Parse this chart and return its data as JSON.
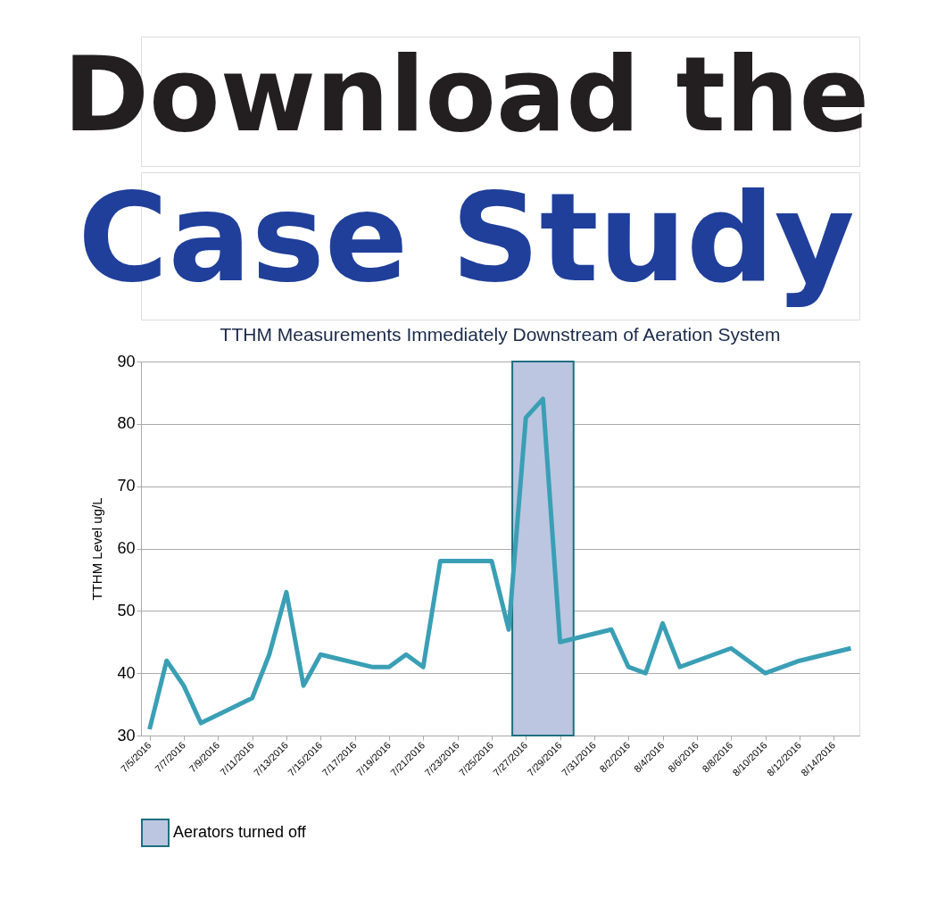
{
  "chart_data": {
    "type": "line",
    "title": "TTHM Measurements Immediately Downstream of Aeration System",
    "ylabel": "TTHM Level ug/L",
    "annotations": [
      "Download the",
      "Case Study"
    ],
    "x": [
      "2016-07-05",
      "2016-07-06",
      "2016-07-07",
      "2016-07-08",
      "2016-07-11",
      "2016-07-12",
      "2016-07-13",
      "2016-07-14",
      "2016-07-15",
      "2016-07-18",
      "2016-07-19",
      "2016-07-20",
      "2016-07-21",
      "2016-07-22",
      "2016-07-25",
      "2016-07-26",
      "2016-07-27",
      "2016-07-28",
      "2016-07-29",
      "2016-08-01",
      "2016-08-02",
      "2016-08-03",
      "2016-08-04",
      "2016-08-05",
      "2016-08-08",
      "2016-08-10",
      "2016-08-12",
      "2016-08-15"
    ],
    "series": [
      {
        "color": "#3a9fb5",
        "values": [
          31,
          42,
          38,
          32,
          36,
          43,
          53,
          38,
          43,
          41,
          41,
          43,
          41,
          58,
          58,
          47,
          81,
          84,
          45,
          47,
          41,
          40,
          48,
          41,
          44,
          40,
          42,
          44
        ]
      }
    ],
    "xlim": [
      "2016-07-04T12:00",
      "2016-08-15T12:00"
    ],
    "xticks": [
      {
        "value": "2016-07-05",
        "label": "7/5/2016"
      },
      {
        "value": "2016-07-07",
        "label": "7/7/2016"
      },
      {
        "value": "2016-07-09",
        "label": "7/9/2016"
      },
      {
        "value": "2016-07-11",
        "label": "7/11/2016"
      },
      {
        "value": "2016-07-13",
        "label": "7/13/2016"
      },
      {
        "value": "2016-07-15",
        "label": "7/15/2016"
      },
      {
        "value": "2016-07-17",
        "label": "7/17/2016"
      },
      {
        "value": "2016-07-19",
        "label": "7/19/2016"
      },
      {
        "value": "2016-07-21",
        "label": "7/21/2016"
      },
      {
        "value": "2016-07-23",
        "label": "7/23/2016"
      },
      {
        "value": "2016-07-25",
        "label": "7/25/2016"
      },
      {
        "value": "2016-07-27",
        "label": "7/27/2016"
      },
      {
        "value": "2016-07-29",
        "label": "7/29/2016"
      },
      {
        "value": "2016-07-31",
        "label": "7/31/2016"
      },
      {
        "value": "2016-08-02",
        "label": "8/2/2016"
      },
      {
        "value": "2016-08-04",
        "label": "8/4/2016"
      },
      {
        "value": "2016-08-06",
        "label": "8/6/2016"
      },
      {
        "value": "2016-08-08",
        "label": "8/8/2016"
      },
      {
        "value": "2016-08-10",
        "label": "8/10/2016"
      },
      {
        "value": "2016-08-12",
        "label": "8/12/2016"
      },
      {
        "value": "2016-08-14",
        "label": "8/14/2016"
      }
    ],
    "ylim": [
      30,
      90
    ],
    "yticks": [
      30,
      40,
      50,
      60,
      70,
      80,
      90
    ],
    "bands": [
      {
        "axis": "x",
        "from": "2016-07-26T05:00",
        "to": "2016-07-29T19:00",
        "label": "Aerators turned off",
        "color": "#bcc6e0"
      }
    ],
    "grid": "y",
    "legend": "bottom",
    "line_style": "solid",
    "marker": "none"
  }
}
